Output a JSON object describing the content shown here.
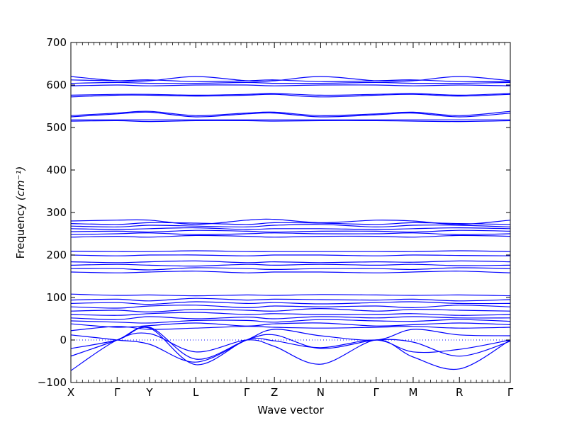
{
  "chart_data": {
    "type": "line",
    "title": "",
    "xlabel": "Wave vector",
    "ylabel_main": "Frequency ",
    "ylabel_unit": "(cm⁻¹)",
    "ylim": [
      -100,
      700
    ],
    "yticks": [
      -100,
      0,
      100,
      200,
      300,
      400,
      500,
      600,
      700
    ],
    "yticks_labels": [
      "−100",
      "0",
      "100",
      "200",
      "300",
      "400",
      "500",
      "600",
      "700"
    ],
    "xlim": [
      0,
      9.5
    ],
    "x_high_symmetry": [
      {
        "label": "X",
        "x": 0.0
      },
      {
        "label": "Γ",
        "x": 1.0
      },
      {
        "label": "Y",
        "x": 1.7
      },
      {
        "label": "L",
        "x": 2.7
      },
      {
        "label": "Γ",
        "x": 3.8
      },
      {
        "label": "Z",
        "x": 4.4
      },
      {
        "label": "N",
        "x": 5.4
      },
      {
        "label": "Γ",
        "x": 6.6
      },
      {
        "label": "M",
        "x": 7.4
      },
      {
        "label": "R",
        "x": 8.4
      },
      {
        "label": "Γ",
        "x": 9.5
      }
    ],
    "zero_reference_line": {
      "y": 0,
      "style": "dotted"
    },
    "grid": false,
    "line_color": "#0000ff",
    "series": [
      {
        "x": [
          0,
          1,
          1.7,
          2.7,
          3.8,
          4.4,
          5.4,
          6.6,
          7.4,
          8.4,
          9.5
        ],
        "y": [
          -72,
          0,
          15,
          -28,
          0,
          -15,
          -57,
          0,
          -40,
          -68,
          0
        ]
      },
      {
        "x": [
          0,
          1,
          1.7,
          2.7,
          3.8,
          4.4,
          5.4,
          6.6,
          7.4,
          8.4,
          9.5
        ],
        "y": [
          -38,
          0,
          30,
          -45,
          0,
          12,
          -20,
          0,
          -5,
          -38,
          -3
        ]
      },
      {
        "x": [
          0,
          1,
          1.7,
          2.7,
          3.8,
          4.4,
          5.4,
          6.6,
          7.4,
          8.4,
          9.5
        ],
        "y": [
          -20,
          0,
          28,
          -58,
          0,
          -2,
          -18,
          0,
          -28,
          -22,
          0
        ]
      },
      {
        "x": [
          0,
          1,
          1.7,
          2.7,
          3.8,
          4.4,
          5.4,
          6.6,
          7.4,
          8.4,
          9.5
        ],
        "y": [
          12,
          0,
          -10,
          -52,
          0,
          25,
          10,
          0,
          25,
          12,
          10
        ]
      },
      {
        "x": [
          0,
          1,
          1.7,
          2.7,
          3.8,
          4.4,
          5.4,
          6.6,
          7.4,
          8.4,
          9.5
        ],
        "y": [
          22,
          32,
          25,
          28,
          32,
          30,
          28,
          30,
          32,
          28,
          30
        ]
      },
      {
        "x": [
          0,
          1,
          1.7,
          2.7,
          3.8,
          4.4,
          5.4,
          6.6,
          7.4,
          8.4,
          9.5
        ],
        "y": [
          38,
          30,
          34,
          40,
          33,
          38,
          40,
          33,
          36,
          40,
          36
        ]
      },
      {
        "x": [
          0,
          1,
          1.7,
          2.7,
          3.8,
          4.4,
          5.4,
          6.6,
          7.4,
          8.4,
          9.5
        ],
        "y": [
          45,
          42,
          40,
          46,
          46,
          42,
          48,
          45,
          44,
          48,
          44
        ]
      },
      {
        "x": [
          0,
          1,
          1.7,
          2.7,
          3.8,
          4.4,
          5.4,
          6.6,
          7.4,
          8.4,
          9.5
        ],
        "y": [
          52,
          48,
          55,
          50,
          54,
          50,
          55,
          52,
          55,
          52,
          52
        ]
      },
      {
        "x": [
          0,
          1,
          1.7,
          2.7,
          3.8,
          4.4,
          5.4,
          6.6,
          7.4,
          8.4,
          9.5
        ],
        "y": [
          60,
          58,
          62,
          65,
          60,
          62,
          60,
          60,
          62,
          58,
          60
        ]
      },
      {
        "x": [
          0,
          1,
          1.7,
          2.7,
          3.8,
          4.4,
          5.4,
          6.6,
          7.4,
          8.4,
          9.5
        ],
        "y": [
          68,
          70,
          66,
          72,
          70,
          68,
          74,
          68,
          72,
          70,
          68
        ]
      },
      {
        "x": [
          0,
          1,
          1.7,
          2.7,
          3.8,
          4.4,
          5.4,
          6.6,
          7.4,
          8.4,
          9.5
        ],
        "y": [
          78,
          75,
          80,
          82,
          76,
          80,
          78,
          80,
          76,
          82,
          78
        ]
      },
      {
        "x": [
          0,
          1,
          1.7,
          2.7,
          3.8,
          4.4,
          5.4,
          6.6,
          7.4,
          8.4,
          9.5
        ],
        "y": [
          86,
          88,
          84,
          90,
          86,
          88,
          85,
          88,
          90,
          86,
          86
        ]
      },
      {
        "x": [
          0,
          1,
          1.7,
          2.7,
          3.8,
          4.4,
          5.4,
          6.6,
          7.4,
          8.4,
          9.5
        ],
        "y": [
          94,
          96,
          92,
          98,
          94,
          96,
          95,
          94,
          96,
          92,
          95
        ]
      },
      {
        "x": [
          0,
          1,
          1.7,
          2.7,
          3.8,
          4.4,
          5.4,
          6.6,
          7.4,
          8.4,
          9.5
        ],
        "y": [
          108,
          105,
          106,
          104,
          106,
          105,
          107,
          106,
          105,
          106,
          104
        ]
      },
      {
        "x": [
          0,
          1,
          1.7,
          2.7,
          3.8,
          4.4,
          5.4,
          6.6,
          7.4,
          8.4,
          9.5
        ],
        "y": [
          160,
          158,
          160,
          162,
          158,
          160,
          160,
          158,
          160,
          162,
          158
        ]
      },
      {
        "x": [
          0,
          1,
          1.7,
          2.7,
          3.8,
          4.4,
          5.4,
          6.6,
          7.4,
          8.4,
          9.5
        ],
        "y": [
          168,
          168,
          165,
          170,
          168,
          166,
          168,
          168,
          166,
          170,
          168
        ]
      },
      {
        "x": [
          0,
          1,
          1.7,
          2.7,
          3.8,
          4.4,
          5.4,
          6.6,
          7.4,
          8.4,
          9.5
        ],
        "y": [
          176,
          178,
          176,
          174,
          178,
          176,
          178,
          176,
          178,
          175,
          176
        ]
      },
      {
        "x": [
          0,
          1,
          1.7,
          2.7,
          3.8,
          4.4,
          5.4,
          6.6,
          7.4,
          8.4,
          9.5
        ],
        "y": [
          184,
          182,
          184,
          186,
          182,
          184,
          182,
          184,
          183,
          186,
          184
        ]
      },
      {
        "x": [
          0,
          1,
          1.7,
          2.7,
          3.8,
          4.4,
          5.4,
          6.6,
          7.4,
          8.4,
          9.5
        ],
        "y": [
          200,
          198,
          200,
          200,
          198,
          200,
          200,
          198,
          200,
          199,
          198
        ]
      },
      {
        "x": [
          0,
          1,
          1.7,
          2.7,
          3.8,
          4.4,
          5.4,
          6.6,
          7.4,
          8.4,
          9.5
        ],
        "y": [
          209,
          208,
          208,
          210,
          208,
          208,
          208,
          208,
          208,
          210,
          208
        ]
      },
      {
        "x": [
          0,
          1,
          1.7,
          2.7,
          3.8,
          4.4,
          5.4,
          6.6,
          7.4,
          8.4,
          9.5
        ],
        "y": [
          242,
          244,
          242,
          246,
          244,
          242,
          244,
          244,
          242,
          246,
          244
        ]
      },
      {
        "x": [
          0,
          1,
          1.7,
          2.7,
          3.8,
          4.4,
          5.4,
          6.6,
          7.4,
          8.4,
          9.5
        ],
        "y": [
          248,
          250,
          252,
          248,
          250,
          252,
          250,
          250,
          252,
          248,
          250
        ]
      },
      {
        "x": [
          0,
          1,
          1.7,
          2.7,
          3.8,
          4.4,
          5.4,
          6.6,
          7.4,
          8.4,
          9.5
        ],
        "y": [
          255,
          256,
          254,
          258,
          256,
          254,
          256,
          256,
          254,
          258,
          256
        ]
      },
      {
        "x": [
          0,
          1,
          1.7,
          2.7,
          3.8,
          4.4,
          5.4,
          6.6,
          7.4,
          8.4,
          9.5
        ],
        "y": [
          262,
          260,
          262,
          264,
          260,
          262,
          262,
          260,
          262,
          264,
          262
        ]
      },
      {
        "x": [
          0,
          1,
          1.7,
          2.7,
          3.8,
          4.4,
          5.4,
          6.6,
          7.4,
          8.4,
          9.5
        ],
        "y": [
          268,
          266,
          270,
          268,
          266,
          270,
          272,
          266,
          270,
          270,
          266
        ]
      },
      {
        "x": [
          0,
          1,
          1.7,
          2.7,
          3.8,
          4.4,
          5.4,
          6.6,
          7.4,
          8.4,
          9.5
        ],
        "y": [
          274,
          272,
          276,
          275,
          272,
          276,
          275,
          272,
          276,
          274,
          272
        ]
      },
      {
        "x": [
          0,
          1,
          1.7,
          2.7,
          3.8,
          4.4,
          5.4,
          6.6,
          7.4,
          8.4,
          9.5
        ],
        "y": [
          280,
          282,
          282,
          272,
          282,
          284,
          276,
          282,
          280,
          272,
          282
        ]
      },
      {
        "x": [
          0,
          1,
          1.7,
          2.7,
          3.8,
          4.4,
          5.4,
          6.6,
          7.4,
          8.4,
          9.5
        ],
        "y": [
          515,
          516,
          514,
          516,
          516,
          515,
          516,
          516,
          515,
          514,
          516
        ]
      },
      {
        "x": [
          0,
          1,
          1.7,
          2.7,
          3.8,
          4.4,
          5.4,
          6.6,
          7.4,
          8.4,
          9.5
        ],
        "y": [
          518,
          518,
          518,
          518,
          518,
          518,
          518,
          518,
          518,
          518,
          518
        ]
      },
      {
        "x": [
          0,
          1,
          1.7,
          2.7,
          3.8,
          4.4,
          5.4,
          6.6,
          7.4,
          8.4,
          9.5
        ],
        "y": [
          525,
          532,
          536,
          525,
          532,
          534,
          525,
          530,
          534,
          525,
          534
        ]
      },
      {
        "x": [
          0,
          1,
          1.7,
          2.7,
          3.8,
          4.4,
          5.4,
          6.6,
          7.4,
          8.4,
          9.5
        ],
        "y": [
          528,
          534,
          538,
          528,
          534,
          536,
          528,
          532,
          536,
          528,
          538
        ]
      },
      {
        "x": [
          0,
          1,
          1.7,
          2.7,
          3.8,
          4.4,
          5.4,
          6.6,
          7.4,
          8.4,
          9.5
        ],
        "y": [
          572,
          576,
          576,
          574,
          576,
          578,
          572,
          576,
          578,
          574,
          578
        ]
      },
      {
        "x": [
          0,
          1,
          1.7,
          2.7,
          3.8,
          4.4,
          5.4,
          6.6,
          7.4,
          8.4,
          9.5
        ],
        "y": [
          576,
          578,
          578,
          576,
          578,
          580,
          576,
          578,
          580,
          576,
          580
        ]
      },
      {
        "x": [
          0,
          1,
          1.7,
          2.7,
          3.8,
          4.4,
          5.4,
          6.6,
          7.4,
          8.4,
          9.5
        ],
        "y": [
          598,
          600,
          598,
          600,
          600,
          598,
          600,
          600,
          598,
          600,
          598
        ]
      },
      {
        "x": [
          0,
          1,
          1.7,
          2.7,
          3.8,
          4.4,
          5.4,
          6.6,
          7.4,
          8.4,
          9.5
        ],
        "y": [
          604,
          606,
          604,
          604,
          606,
          604,
          604,
          606,
          604,
          604,
          606
        ]
      },
      {
        "x": [
          0,
          1,
          1.7,
          2.7,
          3.8,
          4.4,
          5.4,
          6.6,
          7.4,
          8.4,
          9.5
        ],
        "y": [
          612,
          610,
          612,
          608,
          610,
          612,
          608,
          610,
          612,
          608,
          608
        ]
      },
      {
        "x": [
          0,
          1,
          1.7,
          2.7,
          3.8,
          4.4,
          5.4,
          6.6,
          7.4,
          8.4,
          9.5
        ],
        "y": [
          620,
          610,
          610,
          620,
          610,
          610,
          620,
          610,
          610,
          620,
          610
        ]
      }
    ]
  }
}
